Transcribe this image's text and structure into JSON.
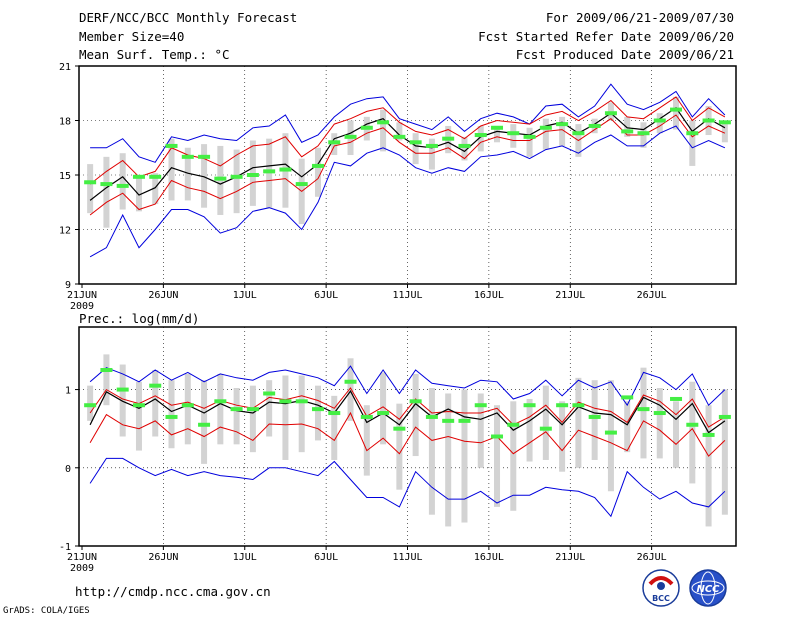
{
  "header": {
    "title": "DERF/NCC/BCC Monthly Forecast",
    "member_size": "Member Size=40",
    "top_panel_label": "Mean Surf. Temp.: °C",
    "period": "For 2009/06/21-2009/07/30",
    "start_date": "Fcst Started Refer Date 2009/06/20",
    "produced_date": "Fcst Produced Date 2009/06/21"
  },
  "bottom_panel_label": "Prec.: log(mm/d)",
  "footer": {
    "url": "http://cmdp.ncc.cma.gov.cn",
    "credit": "GrADS: COLA/IGES"
  },
  "logos": {
    "bcc": "BCC",
    "ncc": "NCC"
  },
  "colors": {
    "ensemble_mean": "#000000",
    "spread": "#e00000",
    "extreme": "#0000dd",
    "box": "#d3d3d3",
    "observed": "#44ee44"
  },
  "chart_data": [
    {
      "type": "line",
      "title": "Mean Surf. Temp.: °C",
      "ylim": [
        9,
        21
      ],
      "yticks": [
        9,
        12,
        15,
        18,
        21
      ],
      "xticks": [
        {
          "label": "21JUN",
          "index": 0,
          "year": "2009"
        },
        {
          "label": "26JUN",
          "index": 5
        },
        {
          "label": "1JUL",
          "index": 10
        },
        {
          "label": "6JUL",
          "index": 15
        },
        {
          "label": "11JUL",
          "index": 20
        },
        {
          "label": "16JUL",
          "index": 25
        },
        {
          "label": "21JUL",
          "index": 30
        },
        {
          "label": "26JUL",
          "index": 35
        }
      ],
      "days": 40,
      "mean": [
        13.6,
        14.3,
        14.9,
        13.9,
        14.3,
        15.4,
        15.1,
        14.9,
        14.5,
        14.9,
        15.4,
        15.5,
        15.6,
        14.9,
        15.6,
        17.0,
        17.3,
        17.8,
        18.1,
        17.2,
        16.6,
        16.5,
        16.8,
        16.3,
        17.1,
        17.4,
        17.3,
        17.2,
        17.7,
        17.9,
        17.3,
        17.8,
        18.4,
        17.6,
        17.5,
        18.1,
        18.7,
        17.4,
        18.1,
        17.6
      ],
      "upper": [
        14.5,
        15.2,
        15.8,
        14.9,
        15.2,
        16.5,
        16.1,
        15.9,
        15.5,
        16.1,
        16.6,
        16.7,
        17.1,
        16.0,
        16.6,
        17.8,
        18.1,
        18.5,
        18.7,
        17.9,
        17.4,
        17.2,
        17.5,
        17.0,
        17.7,
        18.0,
        17.9,
        17.8,
        18.3,
        18.5,
        18.0,
        18.5,
        19.1,
        18.2,
        18.1,
        18.7,
        19.3,
        18.0,
        18.7,
        18.2
      ],
      "lower": [
        12.8,
        13.5,
        14.0,
        13.1,
        13.4,
        14.7,
        14.3,
        14.1,
        13.7,
        14.1,
        14.6,
        14.7,
        14.8,
        14.1,
        14.8,
        16.6,
        16.8,
        17.3,
        17.6,
        16.8,
        16.2,
        16.2,
        16.5,
        15.9,
        16.8,
        17.1,
        16.9,
        16.9,
        17.4,
        17.5,
        16.9,
        17.5,
        18.1,
        17.2,
        17.2,
        17.7,
        18.3,
        17.1,
        17.7,
        17.3
      ],
      "max": [
        16.5,
        16.5,
        17.0,
        16.0,
        15.7,
        17.1,
        16.9,
        17.2,
        17.0,
        16.9,
        17.6,
        17.7,
        18.3,
        16.8,
        17.2,
        18.2,
        18.9,
        19.2,
        19.3,
        18.1,
        17.8,
        17.5,
        18.2,
        17.4,
        18.1,
        18.4,
        18.2,
        17.8,
        18.8,
        18.9,
        18.2,
        18.8,
        20.0,
        18.9,
        18.6,
        19.0,
        19.6,
        18.2,
        19.2,
        18.3
      ],
      "min": [
        10.5,
        11.0,
        12.8,
        11.0,
        12.0,
        13.1,
        13.1,
        12.7,
        11.8,
        12.1,
        13.0,
        13.2,
        12.9,
        12.0,
        13.5,
        15.7,
        15.5,
        16.2,
        16.5,
        16.1,
        15.4,
        15.1,
        15.4,
        15.2,
        16.0,
        16.1,
        16.3,
        15.9,
        16.4,
        16.6,
        16.2,
        16.8,
        17.2,
        16.6,
        16.6,
        17.3,
        17.7,
        16.5,
        16.9,
        16.5
      ],
      "box_high": [
        15.6,
        16.0,
        16.2,
        15.0,
        15.1,
        17.0,
        16.5,
        16.7,
        16.6,
        16.4,
        16.9,
        17.0,
        17.3,
        15.9,
        16.5,
        17.3,
        18.0,
        18.2,
        18.6,
        17.9,
        17.3,
        17.0,
        17.7,
        17.1,
        17.7,
        17.7,
        17.8,
        17.6,
        18.1,
        18.2,
        17.8,
        18.1,
        19.0,
        18.2,
        17.9,
        18.4,
        19.3,
        18.0,
        18.8,
        17.8
      ],
      "box_low": [
        12.9,
        12.1,
        13.1,
        13.0,
        13.4,
        13.6,
        13.6,
        13.2,
        12.8,
        12.9,
        13.3,
        13.2,
        13.2,
        12.3,
        13.8,
        16.1,
        16.1,
        16.9,
        16.3,
        16.9,
        15.6,
        15.3,
        16.2,
        15.8,
        16.3,
        16.8,
        16.5,
        16.0,
        16.4,
        16.6,
        16.0,
        17.3,
        18.0,
        17.1,
        16.5,
        17.3,
        17.5,
        15.5,
        17.2,
        16.8
      ],
      "observed": [
        14.6,
        14.5,
        14.4,
        14.9,
        14.9,
        16.6,
        16.0,
        16.0,
        14.8,
        14.9,
        15.0,
        15.2,
        15.3,
        14.5,
        15.5,
        16.8,
        17.1,
        17.6,
        17.9,
        17.1,
        16.8,
        16.6,
        17.0,
        16.6,
        17.2,
        17.6,
        17.3,
        17.1,
        17.6,
        17.8,
        17.3,
        17.7,
        18.4,
        17.4,
        17.3,
        18.0,
        18.6,
        17.3,
        18.0,
        17.9
      ]
    },
    {
      "type": "line",
      "title": "Prec.: log(mm/d)",
      "ylim": [
        -1,
        1.8
      ],
      "yticks": [
        -1,
        0,
        1
      ],
      "xticks": [
        {
          "label": "21JUN",
          "index": 0,
          "year": "2009"
        },
        {
          "label": "26JUN",
          "index": 5
        },
        {
          "label": "1JUL",
          "index": 10
        },
        {
          "label": "6JUL",
          "index": 15
        },
        {
          "label": "11JUL",
          "index": 20
        },
        {
          "label": "16JUL",
          "index": 25
        },
        {
          "label": "21JUL",
          "index": 30
        },
        {
          "label": "26JUL",
          "index": 35
        }
      ],
      "days": 40,
      "mean": [
        0.55,
        0.97,
        0.85,
        0.76,
        0.88,
        0.72,
        0.8,
        0.7,
        0.82,
        0.73,
        0.7,
        0.84,
        0.82,
        0.86,
        0.8,
        0.7,
        0.98,
        0.58,
        0.7,
        0.55,
        0.82,
        0.65,
        0.75,
        0.65,
        0.62,
        0.7,
        0.48,
        0.6,
        0.75,
        0.55,
        0.78,
        0.7,
        0.68,
        0.55,
        0.9,
        0.8,
        0.62,
        0.82,
        0.45,
        0.6
      ],
      "upper": [
        0.7,
        1.0,
        0.88,
        0.82,
        0.92,
        0.8,
        0.84,
        0.76,
        0.86,
        0.8,
        0.76,
        0.9,
        0.87,
        0.92,
        0.86,
        0.76,
        1.02,
        0.66,
        0.78,
        0.62,
        0.88,
        0.7,
        0.72,
        0.7,
        0.7,
        0.76,
        0.55,
        0.65,
        0.8,
        0.58,
        0.84,
        0.76,
        0.72,
        0.58,
        0.93,
        0.85,
        0.68,
        0.88,
        0.52,
        0.65
      ],
      "lower": [
        0.32,
        0.68,
        0.55,
        0.5,
        0.6,
        0.42,
        0.5,
        0.4,
        0.52,
        0.46,
        0.35,
        0.56,
        0.55,
        0.56,
        0.5,
        0.35,
        0.7,
        0.22,
        0.38,
        0.18,
        0.52,
        0.35,
        0.4,
        0.34,
        0.32,
        0.4,
        0.18,
        0.32,
        0.46,
        0.22,
        0.48,
        0.4,
        0.32,
        0.22,
        0.6,
        0.48,
        0.3,
        0.5,
        0.15,
        0.35
      ],
      "max": [
        1.1,
        1.28,
        1.2,
        1.1,
        1.25,
        1.12,
        1.22,
        1.1,
        1.2,
        1.15,
        1.12,
        1.22,
        1.25,
        1.2,
        1.15,
        1.05,
        1.3,
        0.95,
        1.25,
        0.95,
        1.25,
        1.08,
        1.05,
        1.02,
        1.12,
        1.1,
        0.88,
        0.95,
        1.12,
        0.92,
        1.12,
        1.02,
        1.1,
        0.8,
        1.22,
        1.15,
        1.0,
        1.2,
        0.8,
        1.0
      ],
      "min": [
        -0.2,
        0.12,
        0.12,
        0.0,
        -0.1,
        -0.02,
        -0.1,
        -0.05,
        -0.1,
        -0.12,
        -0.15,
        0.0,
        0.0,
        -0.05,
        -0.1,
        0.08,
        -0.15,
        -0.38,
        -0.38,
        -0.5,
        -0.05,
        -0.25,
        -0.4,
        -0.4,
        -0.3,
        -0.45,
        -0.35,
        -0.35,
        -0.25,
        -0.28,
        -0.3,
        -0.38,
        -0.62,
        -0.05,
        -0.25,
        -0.4,
        -0.3,
        -0.45,
        -0.5,
        -0.3
      ],
      "box_high": [
        1.05,
        1.45,
        1.32,
        1.1,
        1.25,
        1.12,
        1.2,
        1.12,
        1.2,
        1.02,
        1.05,
        1.12,
        1.18,
        1.18,
        1.05,
        0.92,
        1.4,
        0.8,
        1.22,
        0.82,
        1.2,
        1.02,
        0.95,
        1.0,
        0.95,
        0.8,
        0.85,
        0.88,
        1.05,
        0.85,
        1.15,
        1.12,
        1.12,
        0.85,
        1.28,
        1.02,
        0.85,
        1.1,
        0.8,
        1.0
      ],
      "box_low": [
        0.6,
        0.8,
        0.4,
        0.22,
        0.4,
        0.25,
        0.3,
        0.05,
        0.3,
        0.3,
        0.2,
        0.4,
        0.1,
        0.2,
        0.35,
        0.1,
        0.6,
        -0.1,
        0.3,
        -0.28,
        0.15,
        -0.6,
        -0.75,
        -0.7,
        0.0,
        -0.5,
        -0.55,
        0.08,
        0.1,
        -0.05,
        0.0,
        0.1,
        -0.3,
        0.2,
        0.12,
        0.12,
        0.0,
        -0.2,
        -0.75,
        -0.6
      ],
      "observed": [
        0.8,
        1.25,
        1.0,
        0.8,
        1.05,
        0.65,
        0.8,
        0.55,
        0.85,
        0.75,
        0.75,
        0.95,
        0.85,
        0.85,
        0.75,
        0.7,
        1.1,
        0.65,
        0.7,
        0.5,
        0.85,
        0.65,
        0.6,
        0.6,
        0.8,
        0.4,
        0.55,
        0.8,
        0.5,
        0.8,
        0.8,
        0.65,
        0.45,
        0.9,
        0.75,
        0.7,
        0.88,
        0.55,
        0.42,
        0.65
      ]
    }
  ]
}
